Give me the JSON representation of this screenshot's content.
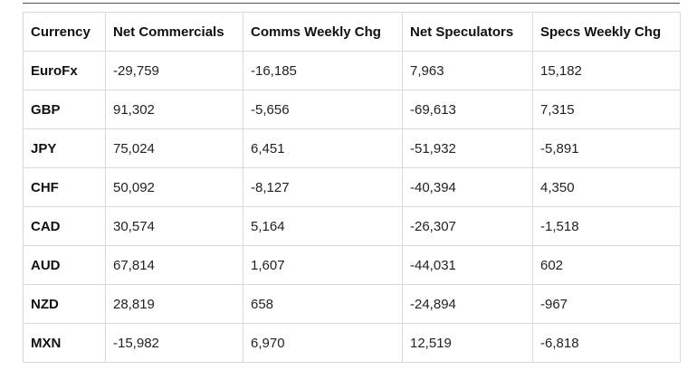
{
  "table": {
    "headers": [
      "Currency",
      "Net Commercials",
      "Comms Weekly Chg",
      "Net Speculators",
      "Specs Weekly Chg"
    ],
    "rows": [
      [
        "EuroFx",
        "-29,759",
        "-16,185",
        "7,963",
        "15,182"
      ],
      [
        "GBP",
        "91,302",
        "-5,656",
        "-69,613",
        "7,315"
      ],
      [
        "JPY",
        "75,024",
        "6,451",
        "-51,932",
        "-5,891"
      ],
      [
        "CHF",
        "50,092",
        "-8,127",
        "-40,394",
        "4,350"
      ],
      [
        "CAD",
        "30,574",
        "5,164",
        "-26,307",
        "-1,518"
      ],
      [
        "AUD",
        "67,814",
        "1,607",
        "-44,031",
        "602"
      ],
      [
        "NZD",
        "28,819",
        "658",
        "-24,894",
        "-967"
      ],
      [
        "MXN",
        "-15,982",
        "6,970",
        "12,519",
        "-6,818"
      ]
    ]
  }
}
